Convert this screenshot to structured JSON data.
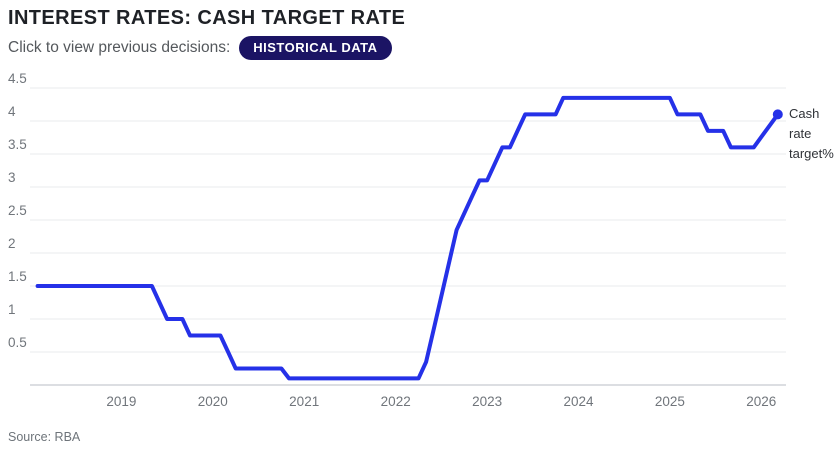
{
  "header": {
    "title": "INTEREST RATES: CASH TARGET RATE",
    "subtitle": "Click to view previous decisions:",
    "badge_label": "HISTORICAL DATA",
    "badge_color": "#1b1464"
  },
  "source": "Source: RBA",
  "chart_data": {
    "type": "line",
    "title": "INTEREST RATES: CASH TARGET RATE",
    "xlabel": "",
    "ylabel": "Cash rate target%",
    "end_label": "Cash rate target%",
    "line_color": "#2531e8",
    "grid": true,
    "legend_position": "right-of-last-point",
    "x_ticks": [
      "2019",
      "2020",
      "2021",
      "2022",
      "2023",
      "2024",
      "2025",
      "2026"
    ],
    "y_ticks": [
      "4.5",
      "4",
      "3.5",
      "3",
      "2.5",
      "2",
      "1.5",
      "1",
      "0.5"
    ],
    "xlim": [
      2018,
      2026.27
    ],
    "ylim": [
      0,
      4.5
    ],
    "series": [
      {
        "name": "Cash rate target%",
        "points": [
          [
            2018.083,
            1.5
          ],
          [
            2019.333,
            1.5
          ],
          [
            2019.417,
            1.25
          ],
          [
            2019.5,
            1.0
          ],
          [
            2019.667,
            1.0
          ],
          [
            2019.75,
            0.75
          ],
          [
            2020.083,
            0.75
          ],
          [
            2020.167,
            0.5
          ],
          [
            2020.25,
            0.25
          ],
          [
            2020.75,
            0.25
          ],
          [
            2020.833,
            0.1
          ],
          [
            2022.25,
            0.1
          ],
          [
            2022.333,
            0.35
          ],
          [
            2022.417,
            0.85
          ],
          [
            2022.5,
            1.35
          ],
          [
            2022.583,
            1.85
          ],
          [
            2022.667,
            2.35
          ],
          [
            2022.75,
            2.6
          ],
          [
            2022.833,
            2.85
          ],
          [
            2022.917,
            3.1
          ],
          [
            2023.0,
            3.1
          ],
          [
            2023.083,
            3.35
          ],
          [
            2023.167,
            3.6
          ],
          [
            2023.25,
            3.6
          ],
          [
            2023.333,
            3.85
          ],
          [
            2023.417,
            4.1
          ],
          [
            2023.75,
            4.1
          ],
          [
            2023.833,
            4.35
          ],
          [
            2025.0,
            4.35
          ],
          [
            2025.083,
            4.1
          ],
          [
            2025.333,
            4.1
          ],
          [
            2025.417,
            3.85
          ],
          [
            2025.583,
            3.85
          ],
          [
            2025.667,
            3.6
          ],
          [
            2025.917,
            3.6
          ],
          [
            2026.18,
            4.1
          ]
        ]
      }
    ]
  }
}
